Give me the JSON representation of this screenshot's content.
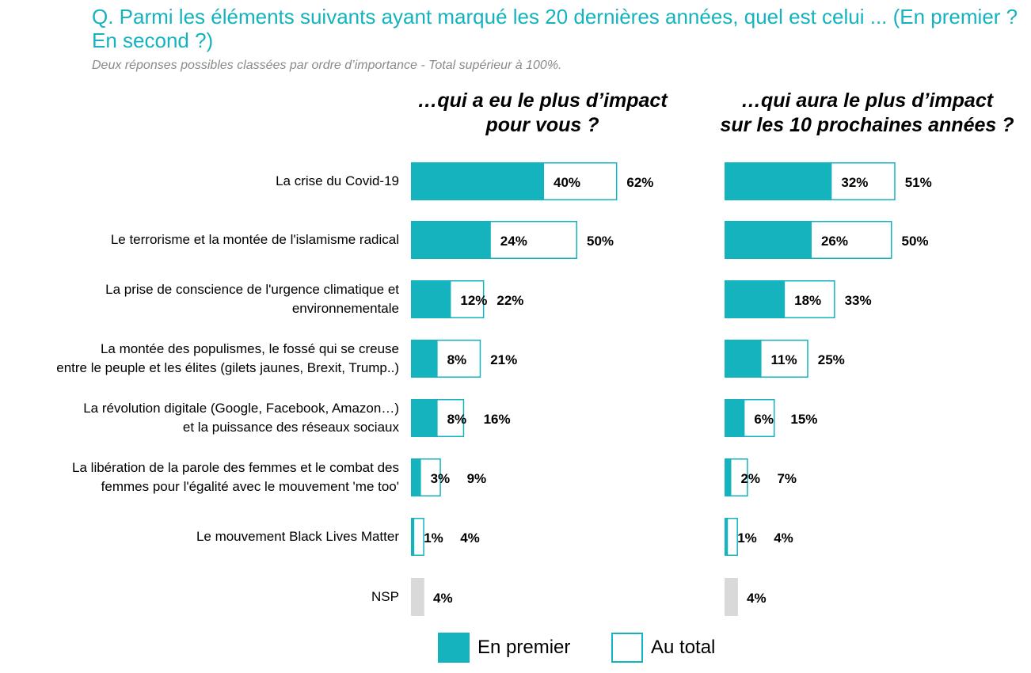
{
  "title": "Q. Parmi les éléments suivants ayant marqué les 20 dernières années, quel est celui ... (En premier ? En second ?)",
  "subtitle": "Deux réponses possibles classées par ordre d’importance - Total supérieur à 100%.",
  "colors": {
    "first": "#14b3be",
    "total_border": "#14b3be",
    "nsp": "#d9d9d9"
  },
  "legend": [
    {
      "label": "En premier"
    },
    {
      "label": "Au total"
    }
  ],
  "chart_data": [
    {
      "type": "bar",
      "title": "…qui a eu le plus d’impact pour vous ?",
      "categories": [
        "La crise du Covid-19",
        "Le terrorisme et la montée de l'islamisme radical",
        "La prise de conscience de l'urgence climatique et environnementale",
        "La montée des populismes, le fossé qui se creuse entre le peuple et les élites (gilets jaunes, Brexit, Trump..)",
        "La révolution digitale (Google, Facebook, Amazon…) et la puissance des réseaux sociaux",
        "La libération de la parole des femmes et le combat des femmes pour l'égalité avec le mouvement 'me too'",
        "Le mouvement Black Lives Matter",
        "NSP"
      ],
      "series": [
        {
          "name": "En premier",
          "values": [
            40,
            24,
            12,
            8,
            8,
            3,
            1,
            null
          ]
        },
        {
          "name": "Au total",
          "values": [
            62,
            50,
            22,
            21,
            16,
            9,
            4,
            4
          ]
        }
      ],
      "unit": "%"
    },
    {
      "type": "bar",
      "title": "…qui aura le plus d’impact sur les 10 prochaines années ?",
      "categories": [
        "La crise du Covid-19",
        "Le terrorisme et la montée de l'islamisme radical",
        "La prise de conscience de l'urgence climatique et environnementale",
        "La montée des populismes, le fossé qui se creuse entre le peuple et les élites (gilets jaunes, Brexit, Trump..)",
        "La révolution digitale (Google, Facebook, Amazon…) et la puissance des réseaux sociaux",
        "La libération de la parole des femmes et le combat des femmes pour l'égalité avec le mouvement 'me too'",
        "Le mouvement Black Lives Matter",
        "NSP"
      ],
      "series": [
        {
          "name": "En premier",
          "values": [
            32,
            26,
            18,
            11,
            6,
            2,
            1,
            null
          ]
        },
        {
          "name": "Au total",
          "values": [
            51,
            50,
            33,
            25,
            15,
            7,
            4,
            4
          ]
        }
      ],
      "unit": "%"
    }
  ],
  "row_labels": [
    [
      "La crise du Covid-19"
    ],
    [
      "Le terrorisme et la montée de l'islamisme radical"
    ],
    [
      "La prise de conscience de l'urgence climatique et",
      "environnementale"
    ],
    [
      "La montée des populismes, le fossé qui se creuse",
      "entre le peuple et les élites (gilets jaunes, Brexit, Trump..)"
    ],
    [
      "La révolution digitale (Google, Facebook, Amazon…)",
      "et la puissance des réseaux sociaux"
    ],
    [
      "La libération de la parole des femmes et le combat des",
      "femmes pour l'égalité avec le mouvement 'me too'"
    ],
    [
      "Le mouvement Black Lives Matter"
    ],
    [
      "NSP"
    ]
  ],
  "panel_headings": [
    [
      "…qui a eu le plus d’impact",
      "pour vous ?"
    ],
    [
      "…qui aura le plus d’impact",
      "sur les 10 prochaines années ?"
    ]
  ]
}
